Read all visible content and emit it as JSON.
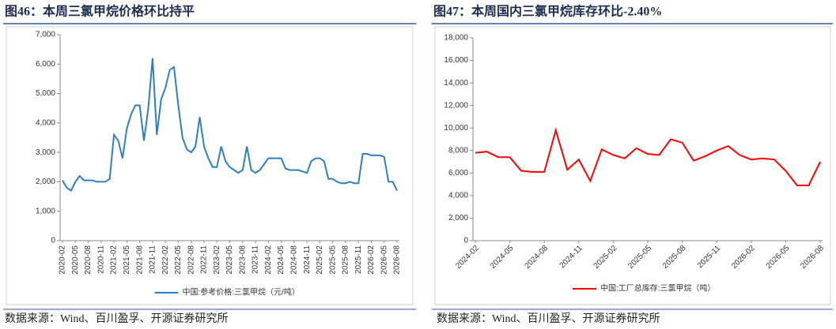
{
  "chart_data": [
    {
      "type": "line",
      "title": "图46：本周三氯甲烷价格环比持平",
      "categories": [
        "2020-02",
        null,
        null,
        "2020-05",
        null,
        null,
        "2020-08",
        null,
        null,
        "2020-11",
        null,
        null,
        "2021-02",
        null,
        null,
        "2021-05",
        null,
        null,
        "2021-08",
        null,
        null,
        "2021-11",
        null,
        null,
        "2022-02",
        null,
        null,
        "2022-05",
        null,
        null,
        "2022-08",
        null,
        null,
        "2022-11",
        null,
        null,
        "2023-02",
        null,
        null,
        "2023-05",
        null,
        null,
        "2023-08",
        null,
        null,
        "2023-11",
        null,
        null,
        "2024-02",
        null,
        null,
        "2024-05",
        null,
        null,
        "2024-08",
        null,
        null,
        "2024-11",
        null,
        null,
        "2025-02",
        null,
        null,
        "2025-05",
        null,
        null,
        "2025-08",
        null,
        null,
        "2025-11",
        null,
        null,
        "2026-02",
        null,
        null,
        "2026-05",
        null,
        null,
        "2026-08"
      ],
      "series": [
        {
          "name": "中国:参考价格:三氯甲烷（元/吨）",
          "color": "#2e7fc2",
          "values": [
            2050,
            1800,
            1700,
            2000,
            2200,
            2050,
            2050,
            2050,
            2000,
            2000,
            2000,
            2100,
            3600,
            3400,
            2800,
            3800,
            4300,
            4600,
            4600,
            3400,
            4500,
            6200,
            3600,
            4800,
            5200,
            5800,
            5900,
            4600,
            3500,
            3100,
            3000,
            3200,
            4200,
            3200,
            2800,
            2500,
            2500,
            3200,
            2700,
            2500,
            2400,
            2300,
            2400,
            3200,
            2400,
            2300,
            2400,
            2600,
            2800,
            2800,
            2800,
            2800,
            2450,
            2400,
            2400,
            2400,
            2350,
            2300,
            2700,
            2800,
            2800,
            2700,
            2100,
            2100,
            2000,
            1950,
            1950,
            2000,
            1950,
            1950,
            2950,
            2950,
            2900,
            2900,
            2900,
            2850,
            2000,
            2000,
            1700
          ]
        }
      ],
      "ylim": [
        0,
        7000
      ],
      "yticks": [
        0,
        {
          "value": 1000,
          "label": "1,000"
        },
        {
          "value": 2000,
          "label": "2,000"
        },
        {
          "value": 3000,
          "label": "3,000"
        },
        {
          "value": 4000,
          "label": "4,000"
        },
        {
          "value": 5000,
          "label": "5,000"
        },
        {
          "value": 6000,
          "label": "6,000"
        },
        {
          "value": 7000,
          "label": "7,000"
        }
      ],
      "source": "数据来源：Wind、百川盈孚、开源证券研究所"
    },
    {
      "type": "line",
      "title": "图47：本周国内三氯甲烷库存环比-2.40%",
      "categories": [
        "2024-02",
        null,
        null,
        "2024-05",
        null,
        null,
        "2024-08",
        null,
        null,
        "2024-11",
        null,
        null,
        "2025-02",
        null,
        null,
        "2025-05",
        null,
        null,
        "2025-08",
        null,
        null,
        "2025-11",
        null,
        null,
        "2026-02",
        null,
        null,
        "2026-05",
        null,
        null,
        "2026-08"
      ],
      "series": [
        {
          "name": "中国:工厂总库存:三氯甲烷（吨）",
          "color": "#ff0000",
          "values": [
            7800,
            7900,
            7400,
            7400,
            6200,
            6100,
            6100,
            9800,
            6300,
            7200,
            5300,
            8100,
            7600,
            7300,
            8200,
            7700,
            7600,
            9000,
            8700,
            7100,
            7500,
            8000,
            8400,
            7600,
            7200,
            7300,
            7200,
            6200,
            4900,
            4900,
            7000
          ]
        }
      ],
      "ylim": [
        0,
        18000
      ],
      "yticks": [
        0,
        {
          "value": 2000,
          "label": "2,000"
        },
        {
          "value": 4000,
          "label": "4,000"
        },
        {
          "value": 6000,
          "label": "6,000"
        },
        {
          "value": 8000,
          "label": "8,000"
        },
        {
          "value": 10000,
          "label": "10,000"
        },
        {
          "value": 12000,
          "label": "12,000"
        },
        {
          "value": 14000,
          "label": "14,000"
        },
        {
          "value": 16000,
          "label": "16,000"
        },
        {
          "value": 18000,
          "label": "18,000"
        }
      ],
      "source": "数据来源：Wind、百川盈孚、开源证券研究所"
    }
  ]
}
